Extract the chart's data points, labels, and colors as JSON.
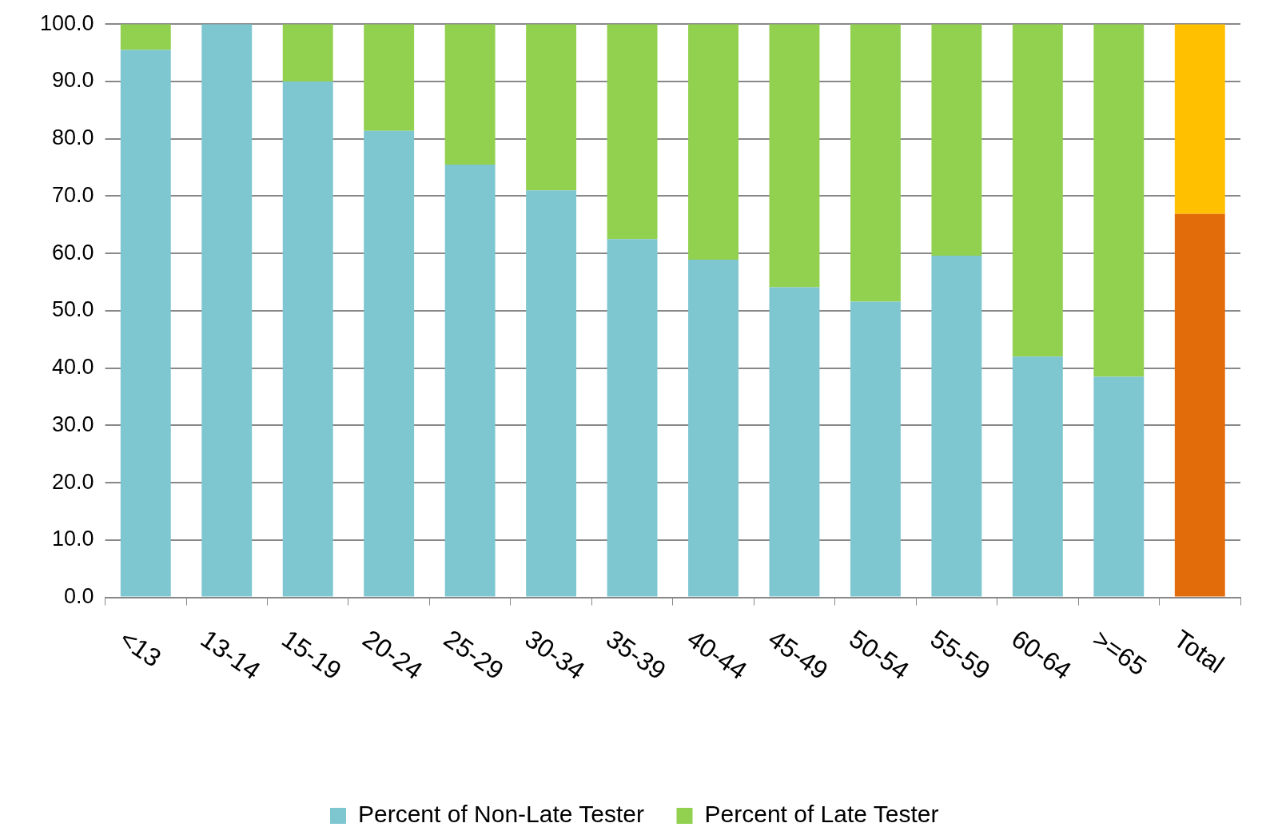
{
  "chart_data": {
    "type": "bar",
    "stacked": true,
    "categories": [
      "<13",
      "13-14",
      "15-19",
      "20-24",
      "25-29",
      "30-34",
      "35-39",
      "40-44",
      "45-49",
      "50-54",
      "55-59",
      "60-64",
      ">=65",
      "Total"
    ],
    "series": [
      {
        "name": "Percent of Non-Late Tester",
        "color": "#7ec6d0",
        "colors": [
          "#7ec6d0",
          "#7ec6d0",
          "#7ec6d0",
          "#7ec6d0",
          "#7ec6d0",
          "#7ec6d0",
          "#7ec6d0",
          "#7ec6d0",
          "#7ec6d0",
          "#7ec6d0",
          "#7ec6d0",
          "#7ec6d0",
          "#7ec6d0",
          "#e36c0a"
        ],
        "values": [
          95.5,
          100,
          90.0,
          81.4,
          75.5,
          71.0,
          62.5,
          58.9,
          54.1,
          51.6,
          59.6,
          42.0,
          38.5,
          66.9
        ]
      },
      {
        "name": "Percent of Late Tester",
        "color": "#92d050",
        "colors": [
          "#92d050",
          "#92d050",
          "#92d050",
          "#92d050",
          "#92d050",
          "#92d050",
          "#92d050",
          "#92d050",
          "#92d050",
          "#92d050",
          "#92d050",
          "#92d050",
          "#92d050",
          "#ffc000"
        ],
        "values": [
          4.5,
          0,
          10.0,
          18.6,
          24.5,
          29.0,
          37.5,
          41.1,
          45.9,
          48.4,
          40.4,
          58.0,
          61.5,
          33.1
        ]
      }
    ],
    "ylim": [
      0,
      100
    ],
    "yticks": [
      {
        "value": 0,
        "label": "0.0"
      },
      {
        "value": 10,
        "label": "10.0"
      },
      {
        "value": 20,
        "label": "20.0"
      },
      {
        "value": 30,
        "label": "30.0"
      },
      {
        "value": 40,
        "label": "40.0"
      },
      {
        "value": 50,
        "label": "50.0"
      },
      {
        "value": 60,
        "label": "60.0"
      },
      {
        "value": 70,
        "label": "70.0"
      },
      {
        "value": 80,
        "label": "80.0"
      },
      {
        "value": 90,
        "label": "90.0"
      },
      {
        "value": 100,
        "label": "100.0"
      }
    ],
    "grid": "y",
    "legend": "bottom"
  }
}
